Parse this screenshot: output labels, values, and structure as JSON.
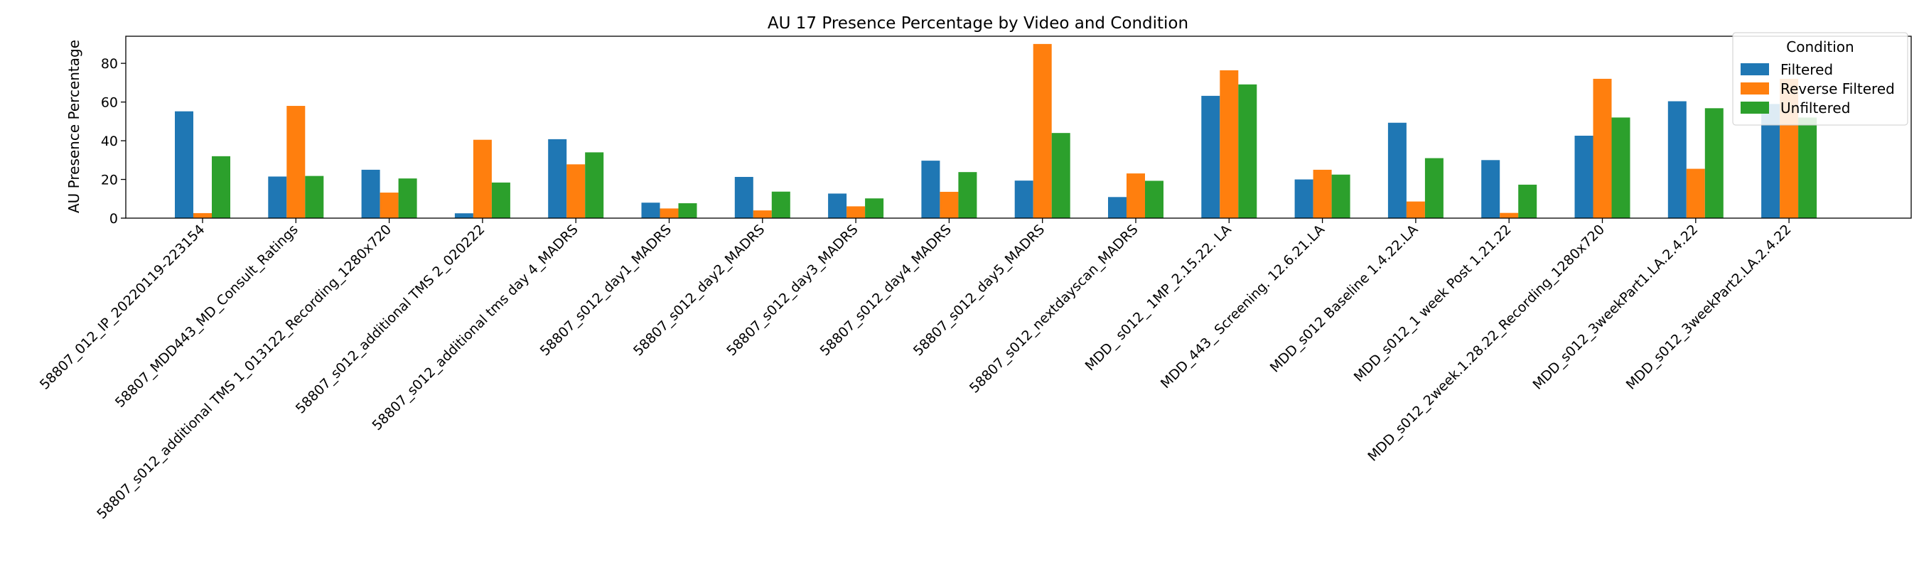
{
  "chart_data": {
    "type": "bar",
    "title": "AU 17 Presence Percentage by Video and Condition",
    "xlabel": "",
    "ylabel": "AU Presence Percentage",
    "ylim": [
      0,
      94
    ],
    "yticks": [
      0,
      20,
      40,
      60,
      80
    ],
    "grid": false,
    "legend": {
      "title": "Condition",
      "placement": "top-right"
    },
    "categories": [
      "58807_012_IP_20220119-223154",
      "58807_MDD443_MD_Consult_Ratings",
      "58807_s012_additional TMS 1_013122_Recording_1280x720",
      "58807_s012_additional TMS 2_020222",
      "58807_s012_additional tms day 4_MADRS",
      "58807_s012_day1_MADRS",
      "58807_s012_day2_MADRS",
      "58807_s012_day3_MADRS",
      "58807_s012_day4_MADRS",
      "58807_s012_day5_MADRS",
      "58807_s012_nextdayscan_MADRS",
      "MDD_ s012_ 1MP_2.15.22. LA",
      "MDD_443_ Screening. 12.6.21.LA",
      "MDD_s012 Baseline 1.4.22.LA",
      "MDD_s012_1 week Post 1.21.22",
      "MDD_s012_2week.1.28.22_Recording_1280x720",
      "MDD_s012_3weekPart1.LA.2.4.22",
      "MDD_s012_3weekPart2.LA.2.4.22"
    ],
    "series": [
      {
        "name": "Filtered",
        "color": "#1f77b4",
        "values": [
          55.2,
          21.5,
          25.0,
          2.5,
          40.8,
          8.0,
          21.3,
          12.7,
          29.7,
          19.4,
          10.9,
          63.2,
          20.0,
          49.3,
          30.0,
          42.6,
          60.4,
          59.0
        ]
      },
      {
        "name": "Reverse Filtered",
        "color": "#ff7f0e",
        "values": [
          2.6,
          58.0,
          13.2,
          40.5,
          27.8,
          5.0,
          4.0,
          6.1,
          13.6,
          90.0,
          23.1,
          76.4,
          25.0,
          8.6,
          2.7,
          72.0,
          25.5,
          72.0
        ]
      },
      {
        "name": "Unfiltered",
        "color": "#2ca02c",
        "values": [
          32.0,
          21.8,
          20.5,
          18.4,
          34.0,
          7.7,
          13.7,
          10.2,
          23.8,
          44.0,
          19.3,
          69.1,
          22.5,
          31.0,
          17.3,
          52.0,
          56.8,
          52.0
        ]
      }
    ]
  }
}
